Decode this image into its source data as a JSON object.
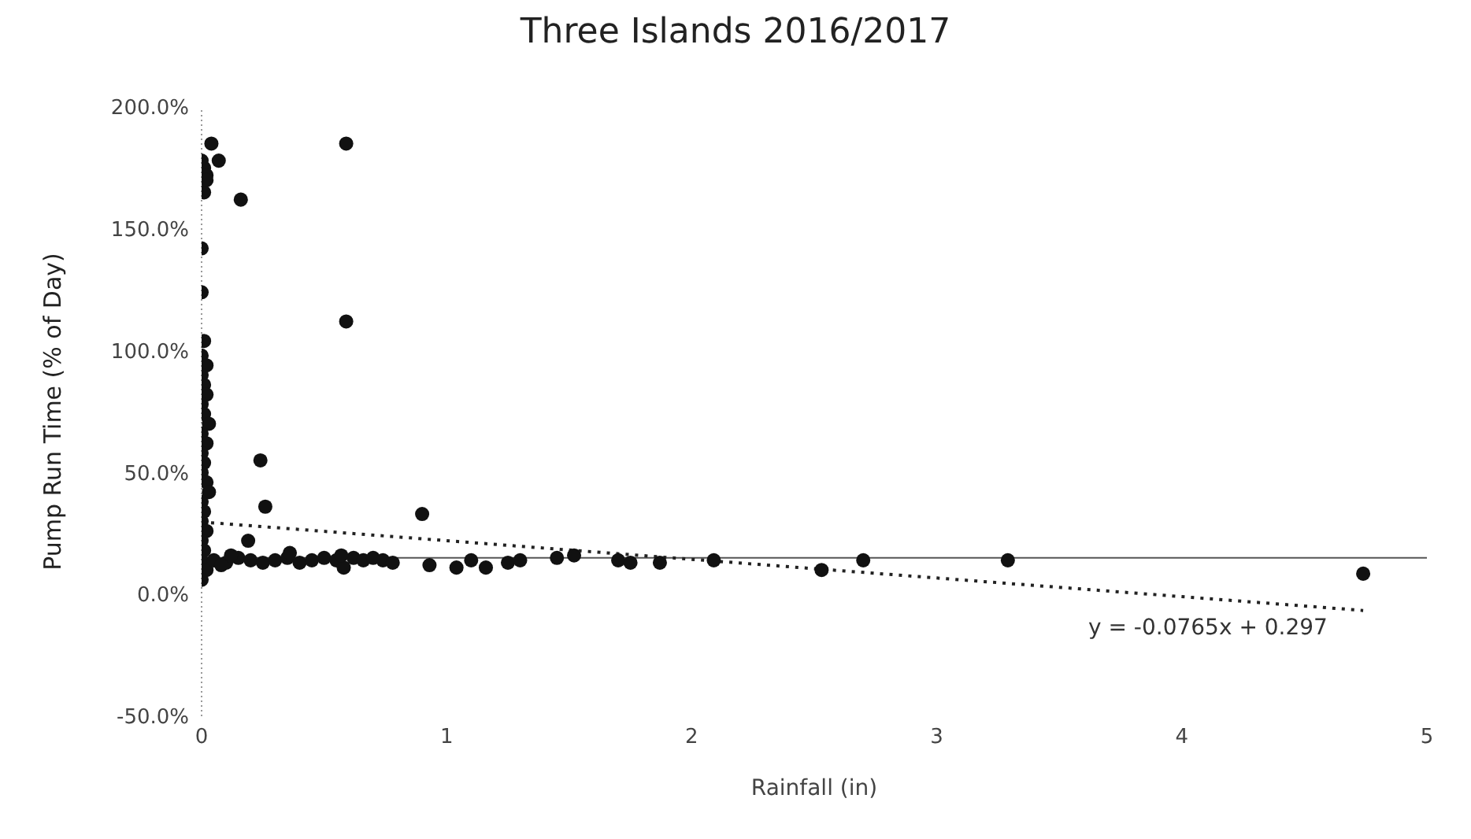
{
  "chart_data": {
    "type": "scatter",
    "title": "Three Islands 2016/2017",
    "xlabel": "Rainfall (in)",
    "ylabel": "Pump Run Time (% of Day)",
    "xlim": [
      0,
      5
    ],
    "xticks": [
      0,
      1,
      2,
      3,
      4,
      5
    ],
    "ylim": [
      -0.5,
      2.0
    ],
    "yticks": [
      {
        "value": -0.5,
        "label": "-50.0%"
      },
      {
        "value": 0,
        "label": "0.0%"
      },
      {
        "value": 0.5,
        "label": "50.0%"
      },
      {
        "value": 1,
        "label": "100.0%"
      },
      {
        "value": 1.5,
        "label": "150.0%"
      },
      {
        "value": 2,
        "label": "200.0%"
      }
    ],
    "grid": false,
    "marker": "circle",
    "series": [
      {
        "color": "#111111",
        "x": [
          0.04,
          0.07,
          0.16,
          0.59,
          0.0,
          0.01,
          0.02,
          0.01,
          0.02,
          0.0,
          0.59,
          0.0,
          0.01,
          0.0,
          0.02,
          0.0,
          0.01,
          0.02,
          0.0,
          0.01,
          0.03,
          0.0,
          0.02,
          0.0,
          0.01,
          0.0,
          0.02,
          0.03,
          0.0,
          0.01,
          0.0,
          0.02,
          0.0,
          0.01,
          0.0,
          0.02,
          0.0,
          0.24,
          0.26,
          0.9,
          0.19,
          0.05,
          0.1,
          0.15,
          0.2,
          0.25,
          0.3,
          0.35,
          0.4,
          0.45,
          0.5,
          0.55,
          0.58,
          0.62,
          0.66,
          0.7,
          0.74,
          0.78,
          0.93,
          1.04,
          1.1,
          1.16,
          1.25,
          1.3,
          1.45,
          1.52,
          1.7,
          1.75,
          1.87,
          2.09,
          2.53,
          2.7,
          3.29,
          4.74,
          0.08,
          0.12,
          0.36,
          0.57
        ],
        "values": [
          1.85,
          1.78,
          1.62,
          1.85,
          1.78,
          1.75,
          1.72,
          1.65,
          1.7,
          1.42,
          1.12,
          1.24,
          1.04,
          0.98,
          0.94,
          0.9,
          0.86,
          0.82,
          0.78,
          0.74,
          0.7,
          0.66,
          0.62,
          0.58,
          0.54,
          0.5,
          0.46,
          0.42,
          0.38,
          0.34,
          0.3,
          0.26,
          0.22,
          0.18,
          0.14,
          0.1,
          0.06,
          0.55,
          0.36,
          0.33,
          0.22,
          0.14,
          0.13,
          0.15,
          0.14,
          0.13,
          0.14,
          0.15,
          0.13,
          0.14,
          0.15,
          0.14,
          0.11,
          0.15,
          0.14,
          0.15,
          0.14,
          0.13,
          0.12,
          0.11,
          0.14,
          0.11,
          0.13,
          0.14,
          0.15,
          0.16,
          0.14,
          0.13,
          0.13,
          0.14,
          0.1,
          0.14,
          0.14,
          0.085,
          0.12,
          0.16,
          0.17,
          0.16
        ]
      },
      {
        "type": "line",
        "color": "#222222",
        "line_style": "dotted",
        "marker": "none",
        "x": [
          0,
          4.74
        ],
        "values": [
          0.297,
          -0.066
        ]
      }
    ],
    "ref_lines": [
      {
        "axis": "y",
        "value": 0.15,
        "color": "#555555"
      }
    ],
    "annotations": [
      "y = -0.0765x + 0.297"
    ]
  }
}
